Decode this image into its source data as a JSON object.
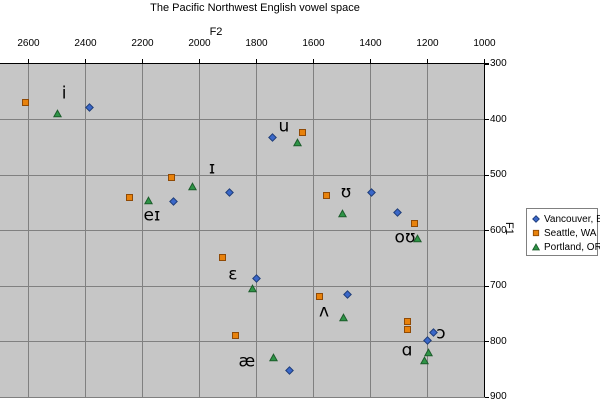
{
  "title": "The Pacific Northwest English vowel space",
  "axes": {
    "x": {
      "label": "F2",
      "position": "top",
      "reversed": true,
      "ticks": [
        2600,
        2400,
        2200,
        2000,
        1800,
        1600,
        1400,
        1200,
        1000
      ],
      "range": [
        2700,
        1000
      ]
    },
    "y": {
      "label": "F1",
      "position": "right",
      "increases_downward": true,
      "ticks": [
        300,
        400,
        500,
        600,
        700,
        800,
        900
      ],
      "range": [
        300,
        900
      ]
    }
  },
  "legend": {
    "position": "right",
    "items": [
      {
        "label": "Vancouver, BC",
        "marker": "diamond",
        "color": "#3A67C8"
      },
      {
        "label": "Seattle, WA",
        "marker": "square",
        "color": "#E8820C"
      },
      {
        "label": "Portland, OR",
        "marker": "triangle",
        "color": "#2E9446"
      }
    ]
  },
  "colors": {
    "plot_background": "#C6C6C6",
    "gridline": "#808080",
    "axis": "#000000"
  },
  "chart_data": {
    "type": "scatter",
    "title": "The Pacific Northwest English vowel space",
    "xlabel": "F2",
    "ylabel": "F1",
    "x_range": [
      2700,
      1000
    ],
    "y_range": [
      300,
      900
    ],
    "grid": true,
    "series": [
      {
        "name": "Vancouver, BC",
        "marker": "diamond",
        "fill": "#3A67C8",
        "stroke": "#1E3C78",
        "points": [
          [
            2385,
            379
          ],
          [
            2090,
            548
          ],
          [
            1895,
            532
          ],
          [
            1745,
            433
          ],
          [
            1395,
            532
          ],
          [
            1305,
            567
          ],
          [
            1800,
            686
          ],
          [
            1480,
            716
          ],
          [
            1685,
            853
          ],
          [
            1200,
            799
          ],
          [
            1180,
            783
          ]
        ]
      },
      {
        "name": "Seattle, WA",
        "marker": "square",
        "fill": "#E8820C",
        "stroke": "#8F4A06",
        "points": [
          [
            2610,
            370
          ],
          [
            2245,
            540
          ],
          [
            2100,
            504
          ],
          [
            1640,
            424
          ],
          [
            1555,
            536
          ],
          [
            1245,
            587
          ],
          [
            1920,
            648
          ],
          [
            1580,
            718
          ],
          [
            1875,
            790
          ],
          [
            1270,
            763
          ],
          [
            1270,
            779
          ]
        ]
      },
      {
        "name": "Portland, OR",
        "marker": "triangle",
        "fill": "#2E9446",
        "stroke": "#1C5C2B",
        "points": [
          [
            2500,
            390
          ],
          [
            2180,
            545
          ],
          [
            2025,
            520
          ],
          [
            1655,
            441
          ],
          [
            1500,
            570
          ],
          [
            1235,
            614
          ],
          [
            1815,
            704
          ],
          [
            1495,
            756
          ],
          [
            1740,
            828
          ],
          [
            1195,
            819
          ],
          [
            1210,
            835
          ]
        ]
      }
    ],
    "vowel_labels": [
      {
        "text": "i",
        "F2": 2475,
        "F1": 354
      },
      {
        "text": "eɪ",
        "F2": 2167,
        "F1": 574
      },
      {
        "text": "ɪ",
        "F2": 1956,
        "F1": 489
      },
      {
        "text": "u",
        "F2": 1704,
        "F1": 414
      },
      {
        "text": "ʊ",
        "F2": 1486,
        "F1": 532
      },
      {
        "text": "oʊ",
        "F2": 1279,
        "F1": 614
      },
      {
        "text": "ɛ",
        "F2": 1883,
        "F1": 680
      },
      {
        "text": "ʌ",
        "F2": 1563,
        "F1": 747
      },
      {
        "text": "æ",
        "F2": 1834,
        "F1": 837
      },
      {
        "text": "ɑ",
        "F2": 1272,
        "F1": 817
      },
      {
        "text": "ɔ",
        "F2": 1153,
        "F1": 787
      }
    ]
  }
}
